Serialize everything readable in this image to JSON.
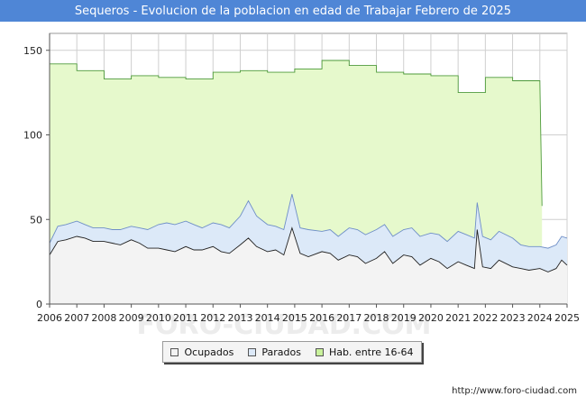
{
  "chart_data": {
    "type": "area",
    "title": "Sequeros - Evolucion de la poblacion en edad de Trabajar Febrero de 2025",
    "xlabel": "",
    "ylabel": "",
    "xlim": [
      2006,
      2025
    ],
    "ylim": [
      0,
      160
    ],
    "y_ticks": [
      0,
      50,
      100,
      150
    ],
    "x_ticks": [
      2006,
      2007,
      2008,
      2009,
      2010,
      2011,
      2012,
      2013,
      2014,
      2015,
      2016,
      2017,
      2018,
      2019,
      2020,
      2021,
      2022,
      2023,
      2024,
      2025
    ],
    "grid": true,
    "legend_position": "bottom-center",
    "series": [
      {
        "name": "Ocupados",
        "color": "#f3f3f3",
        "stroke": "#222222",
        "x": [
          2006.0,
          2006.3,
          2006.6,
          2007.0,
          2007.3,
          2007.6,
          2008.0,
          2008.3,
          2008.6,
          2009.0,
          2009.3,
          2009.6,
          2010.0,
          2010.3,
          2010.6,
          2011.0,
          2011.3,
          2011.6,
          2012.0,
          2012.3,
          2012.6,
          2013.0,
          2013.3,
          2013.6,
          2014.0,
          2014.3,
          2014.6,
          2014.9,
          2015.2,
          2015.5,
          2016.0,
          2016.3,
          2016.6,
          2017.0,
          2017.3,
          2017.6,
          2018.0,
          2018.3,
          2018.6,
          2019.0,
          2019.3,
          2019.6,
          2020.0,
          2020.3,
          2020.6,
          2021.0,
          2021.3,
          2021.6,
          2021.7,
          2021.9,
          2022.2,
          2022.5,
          2023.0,
          2023.3,
          2023.6,
          2024.0,
          2024.3,
          2024.6,
          2024.8,
          2025.0
        ],
        "values": [
          29,
          37,
          38,
          40,
          39,
          37,
          37,
          36,
          35,
          38,
          36,
          33,
          33,
          32,
          31,
          34,
          32,
          32,
          34,
          31,
          30,
          35,
          39,
          34,
          31,
          32,
          29,
          45,
          30,
          28,
          31,
          30,
          26,
          29,
          28,
          24,
          27,
          31,
          24,
          29,
          28,
          23,
          27,
          25,
          21,
          25,
          23,
          21,
          44,
          22,
          21,
          26,
          22,
          21,
          20,
          21,
          19,
          21,
          26,
          23
        ]
      },
      {
        "name": "Parados",
        "color": "#dce9f8",
        "stroke": "#6f8fc7",
        "x": [
          2006.0,
          2006.3,
          2006.6,
          2007.0,
          2007.3,
          2007.6,
          2008.0,
          2008.3,
          2008.6,
          2009.0,
          2009.3,
          2009.6,
          2010.0,
          2010.3,
          2010.6,
          2011.0,
          2011.3,
          2011.6,
          2012.0,
          2012.3,
          2012.6,
          2013.0,
          2013.3,
          2013.6,
          2014.0,
          2014.3,
          2014.6,
          2014.9,
          2015.2,
          2015.5,
          2016.0,
          2016.3,
          2016.6,
          2017.0,
          2017.3,
          2017.6,
          2018.0,
          2018.3,
          2018.6,
          2019.0,
          2019.3,
          2019.6,
          2020.0,
          2020.3,
          2020.6,
          2021.0,
          2021.3,
          2021.6,
          2021.7,
          2021.9,
          2022.2,
          2022.5,
          2023.0,
          2023.3,
          2023.6,
          2024.0,
          2024.3,
          2024.6,
          2024.8,
          2025.0
        ],
        "values": [
          36,
          46,
          47,
          49,
          47,
          45,
          45,
          44,
          44,
          46,
          45,
          44,
          47,
          48,
          47,
          49,
          47,
          45,
          48,
          47,
          45,
          52,
          61,
          52,
          47,
          46,
          44,
          65,
          45,
          44,
          43,
          44,
          40,
          45,
          44,
          41,
          44,
          47,
          40,
          44,
          45,
          40,
          42,
          41,
          37,
          43,
          41,
          39,
          60,
          40,
          38,
          43,
          39,
          35,
          34,
          34,
          33,
          35,
          40,
          39
        ]
      },
      {
        "name": "Hab. entre 16-64",
        "color": "#e6f9cc",
        "stroke": "#4d9a3a",
        "x": [
          2006.0,
          2007.0,
          2007.001,
          2008.0,
          2008.001,
          2009.0,
          2009.001,
          2010.0,
          2010.001,
          2011.0,
          2011.001,
          2012.0,
          2012.001,
          2013.0,
          2013.001,
          2014.0,
          2014.001,
          2015.0,
          2015.001,
          2016.0,
          2016.001,
          2017.0,
          2017.001,
          2018.0,
          2018.001,
          2019.0,
          2019.001,
          2020.0,
          2020.001,
          2021.0,
          2021.001,
          2022.0,
          2022.001,
          2023.0,
          2023.001,
          2024.0,
          2024.08
        ],
        "values": [
          142,
          142,
          138,
          138,
          133,
          133,
          135,
          135,
          134,
          134,
          133,
          133,
          137,
          137,
          138,
          138,
          137,
          137,
          139,
          139,
          144,
          144,
          141,
          141,
          137,
          137,
          136,
          136,
          135,
          135,
          125,
          125,
          134,
          134,
          132,
          132,
          58
        ]
      }
    ]
  },
  "legend": {
    "items": [
      {
        "label": "Ocupados",
        "color": "#f3f3f3"
      },
      {
        "label": "Parados",
        "color": "#dce9f8"
      },
      {
        "label": "Hab. entre 16-64",
        "color": "#c9f29c"
      }
    ]
  },
  "credit": "http://www.foro-ciudad.com",
  "watermark": "FORO-CIUDAD.COM"
}
